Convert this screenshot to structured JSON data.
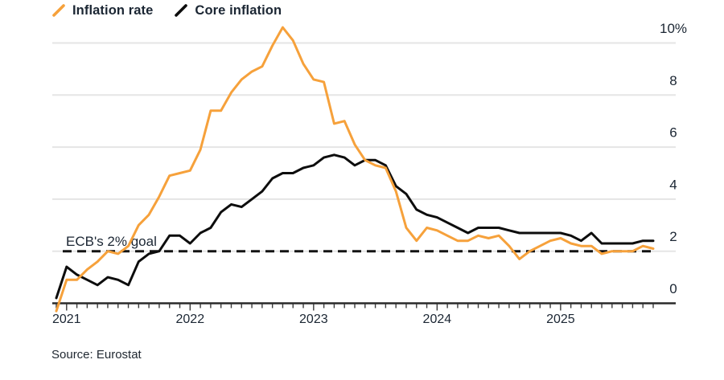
{
  "legend": {
    "items": [
      {
        "label": "Inflation rate",
        "color": "#F6A13B"
      },
      {
        "label": "Core inflation",
        "color": "#0d0d0d"
      }
    ]
  },
  "source": "Source: Eurostat",
  "colors": {
    "inflation_rate": "#F6A13B",
    "core_inflation": "#0d0d0d",
    "goal_line": "#121212",
    "grid": "#e5e5e5",
    "axis": "#2a2a2a",
    "text": "#1b2633"
  },
  "chart_data": {
    "type": "line",
    "title": "",
    "xlabel": "",
    "ylabel": "",
    "x_interval": "monthly",
    "x_start": "2020-12",
    "x_end": "2025-10",
    "x_tick_labels": [
      "2021",
      "2022",
      "2023",
      "2024",
      "2025"
    ],
    "y_tick_values": [
      0,
      2,
      4,
      6,
      8,
      10
    ],
    "y_tick_labels": [
      "0",
      "2",
      "4",
      "6",
      "8",
      "10%"
    ],
    "ylim": [
      -0.5,
      10.8
    ],
    "grid": "horizontal",
    "legend_position": "top-left",
    "goal_line": {
      "label": "ECB's 2% goal",
      "value": 2,
      "style": "dashed"
    },
    "series": [
      {
        "name": "Inflation rate",
        "color": "#F6A13B",
        "values": [
          -0.3,
          0.9,
          0.9,
          1.3,
          1.6,
          2.0,
          1.9,
          2.2,
          3.0,
          3.4,
          4.1,
          4.9,
          5.0,
          5.1,
          5.9,
          7.4,
          7.4,
          8.1,
          8.6,
          8.9,
          9.1,
          9.9,
          10.6,
          10.1,
          9.2,
          8.6,
          8.5,
          6.9,
          7.0,
          6.1,
          5.5,
          5.3,
          5.2,
          4.3,
          2.9,
          2.4,
          2.9,
          2.8,
          2.6,
          2.4,
          2.4,
          2.6,
          2.5,
          2.6,
          2.2,
          1.7,
          2.0,
          2.2,
          2.4,
          2.5,
          2.3,
          2.2,
          2.2,
          1.9,
          2.0,
          2.0,
          2.0,
          2.2,
          2.1
        ]
      },
      {
        "name": "Core inflation",
        "color": "#0d0d0d",
        "values": [
          0.2,
          1.4,
          1.1,
          0.9,
          0.7,
          1.0,
          0.9,
          0.7,
          1.6,
          1.9,
          2.0,
          2.6,
          2.6,
          2.3,
          2.7,
          2.9,
          3.5,
          3.8,
          3.7,
          4.0,
          4.3,
          4.8,
          5.0,
          5.0,
          5.2,
          5.3,
          5.6,
          5.7,
          5.6,
          5.3,
          5.5,
          5.5,
          5.3,
          4.5,
          4.2,
          3.6,
          3.4,
          3.3,
          3.1,
          2.9,
          2.7,
          2.9,
          2.9,
          2.9,
          2.8,
          2.7,
          2.7,
          2.7,
          2.7,
          2.7,
          2.6,
          2.4,
          2.7,
          2.3,
          2.3,
          2.3,
          2.3,
          2.4,
          2.4
        ]
      }
    ]
  }
}
